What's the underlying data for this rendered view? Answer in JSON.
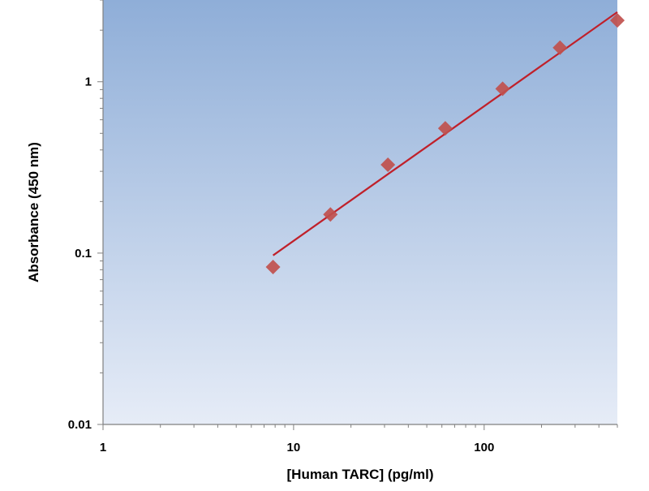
{
  "chart_data": {
    "type": "scatter",
    "title": "",
    "xlabel": "[Human TARC] (pg/ml)",
    "ylabel": "Absorbance (450 nm)",
    "x_scale": "log",
    "y_scale": "log",
    "xlim": [
      1,
      500
    ],
    "ylim": [
      0.01,
      3
    ],
    "x_ticks": [
      1,
      10,
      100
    ],
    "x_tick_labels": [
      "1",
      "10",
      "100"
    ],
    "y_ticks": [
      0.01,
      0.1,
      1
    ],
    "y_tick_labels": [
      "0.01",
      "0.1",
      "1"
    ],
    "grid": false,
    "legend": "none",
    "series": [
      {
        "marker": "diamond",
        "x": [
          7.8,
          15.6,
          31.25,
          62.5,
          125,
          250,
          500
        ],
        "y": [
          0.083,
          0.168,
          0.328,
          0.535,
          0.91,
          1.58,
          2.28
        ]
      }
    ],
    "fit_line": {
      "x": [
        7.8,
        500
      ],
      "y": [
        0.097,
        2.55
      ]
    },
    "colors": {
      "marker": "#c0504d",
      "fit_line": "#c0202a",
      "plot_bg_top": "#8faed8",
      "plot_bg_bottom": "#e6ecf7"
    }
  }
}
